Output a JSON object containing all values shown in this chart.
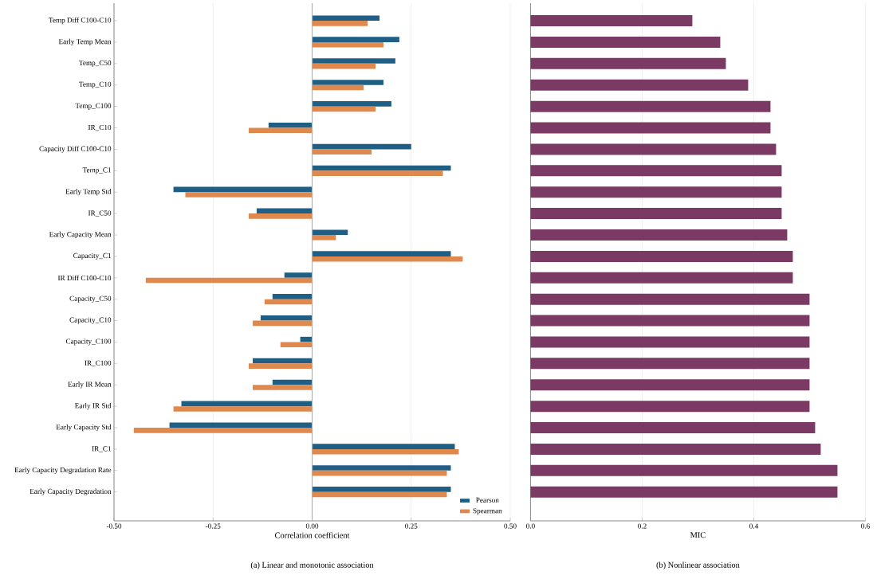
{
  "chart_data": [
    {
      "type": "bar",
      "orientation": "horizontal",
      "xlabel": "Correlation coefficient",
      "categories": [
        "Temp Diff C100-C10",
        "Early Temp Mean",
        "Temp_C50",
        "Temp_C10",
        "Temp_C100",
        "IR_C10",
        "Capacity Diff C100-C10",
        "Temp_C1",
        "Early Temp Std",
        "IR_C50",
        "Early Capacity Mean",
        "Capacity_C1",
        "IR Diff C100-C10",
        "Capacity_C50",
        "Capacity_C10",
        "Capacity_C100",
        "IR_C100",
        "Early IR Mean",
        "Early IR Std",
        "Early Capacity Std",
        "IR_C1",
        "Early Capacity Degradation Rate",
        "Early Capacity Degradation"
      ],
      "series": [
        {
          "name": "Pearson",
          "color": "#1f5f85",
          "values": [
            0.17,
            0.22,
            0.21,
            0.18,
            0.2,
            -0.11,
            0.25,
            0.35,
            -0.35,
            -0.14,
            0.09,
            0.35,
            -0.07,
            -0.1,
            -0.13,
            -0.03,
            -0.15,
            -0.1,
            -0.33,
            -0.36,
            0.36,
            0.35,
            0.35
          ]
        },
        {
          "name": "Spearman",
          "color": "#e0894f",
          "values": [
            0.14,
            0.18,
            0.16,
            0.13,
            0.16,
            -0.16,
            0.15,
            0.33,
            -0.32,
            -0.16,
            0.06,
            0.38,
            -0.42,
            -0.12,
            -0.15,
            -0.08,
            -0.16,
            -0.15,
            -0.35,
            -0.45,
            0.37,
            0.34,
            0.34
          ]
        }
      ],
      "xlim": [
        -0.5,
        0.5
      ],
      "xticks": [
        {
          "value": -0.5,
          "label": "-0.50"
        },
        {
          "value": -0.25,
          "label": "-0.25"
        },
        {
          "value": 0,
          "label": "0.00"
        },
        {
          "value": 0.25,
          "label": "0.25"
        },
        {
          "value": 0.5,
          "label": "0.50"
        }
      ],
      "grid": "x",
      "legend": "bottom right",
      "ref_lines": [
        {
          "axis": "x",
          "value": 0,
          "color": "#b0b0b0"
        }
      ],
      "annotations": [
        "(a) Linear and monotonic association"
      ]
    },
    {
      "type": "bar",
      "orientation": "horizontal",
      "xlabel": "MIC",
      "categories": [
        null,
        null,
        null,
        null,
        null,
        null,
        null,
        null,
        null,
        null,
        null,
        null,
        null,
        null,
        null,
        null,
        null,
        null,
        null,
        null,
        null,
        null,
        null
      ],
      "values": [
        0.29,
        0.34,
        0.35,
        0.39,
        0.43,
        0.43,
        0.44,
        0.45,
        0.45,
        0.45,
        0.46,
        0.47,
        0.47,
        0.5,
        0.5,
        0.5,
        0.5,
        0.5,
        0.5,
        0.51,
        0.52,
        0.55,
        0.55
      ],
      "color": "#7b3a64",
      "xlim": [
        0,
        0.6
      ],
      "xticks": [
        {
          "value": 0,
          "label": "0.0"
        },
        {
          "value": 0.2,
          "label": "0.2"
        },
        {
          "value": 0.4,
          "label": "0.4"
        },
        {
          "value": 0.6,
          "label": "0.6"
        }
      ],
      "grid": "x",
      "tick_labels": "x",
      "annotations": [
        "(b) Nonlinear association"
      ]
    }
  ]
}
